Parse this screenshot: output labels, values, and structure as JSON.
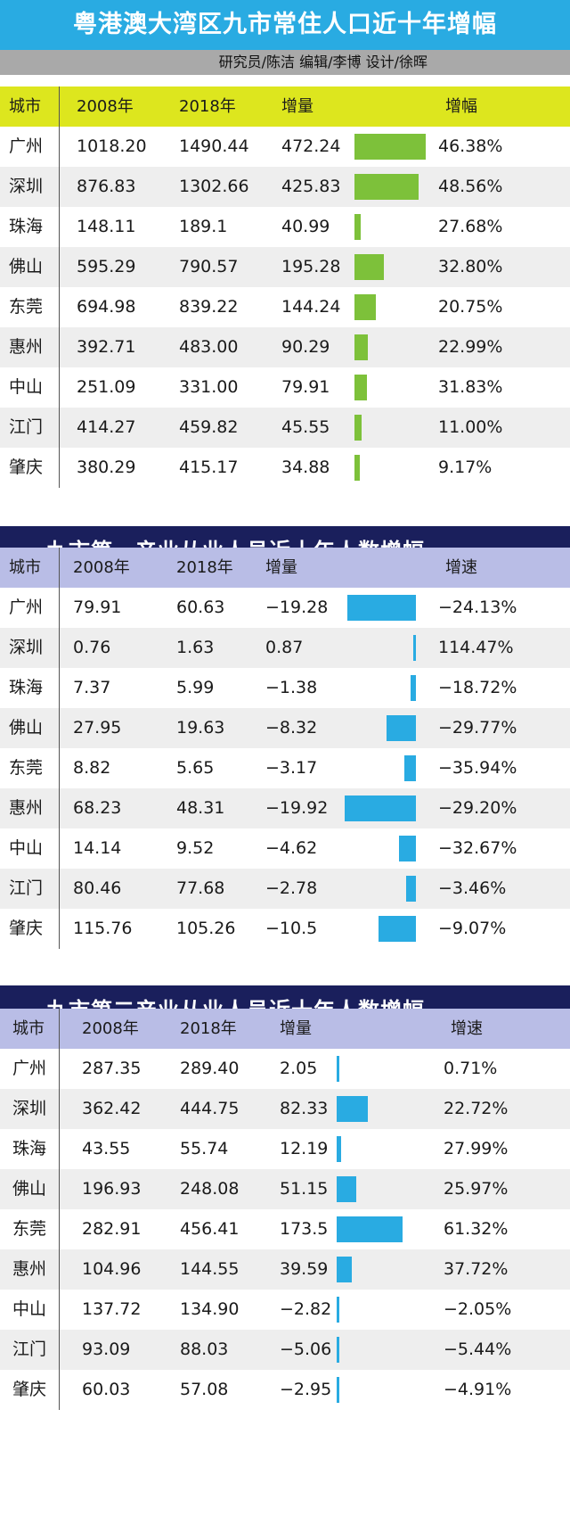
{
  "header": {
    "title": "粤港澳大湾区九市常住人口近十年增幅",
    "credits": "研究员/陈洁  编辑/李博  设计/徐晖"
  },
  "chart_data": [
    {
      "type": "table",
      "title": "",
      "columns": [
        "城市",
        "2008年",
        "2018年",
        "增量",
        "增幅"
      ],
      "rows": [
        [
          "广州",
          "1018.20",
          "1490.44",
          "472.24",
          "46.38%"
        ],
        [
          "深圳",
          "876.83",
          "1302.66",
          "425.83",
          "48.56%"
        ],
        [
          "珠海",
          "148.11",
          "189.1",
          "40.99",
          "27.68%"
        ],
        [
          "佛山",
          "595.29",
          "790.57",
          "195.28",
          "32.80%"
        ],
        [
          "东莞",
          "694.98",
          "839.22",
          "144.24",
          "20.75%"
        ],
        [
          "惠州",
          "392.71",
          "483.00",
          "90.29",
          "22.99%"
        ],
        [
          "中山",
          "251.09",
          "331.00",
          "79.91",
          "31.83%"
        ],
        [
          "江门",
          "414.27",
          "459.82",
          "45.55",
          "11.00%"
        ],
        [
          "肇庆",
          "380.29",
          "415.17",
          "34.88",
          "9.17%"
        ]
      ],
      "bar_values": [
        472.24,
        425.83,
        40.99,
        195.28,
        144.24,
        90.29,
        79.91,
        45.55,
        34.88
      ],
      "bar_color": "#7dc13a",
      "header_color": "#dde61e",
      "bar_direction": "right"
    },
    {
      "type": "table",
      "title": "九市第一产业从业人员近十年人数增幅",
      "columns": [
        "城市",
        "2008年",
        "2018年",
        "增量",
        "增速"
      ],
      "rows": [
        [
          "广州",
          "79.91",
          "60.63",
          "−19.28",
          "−24.13%"
        ],
        [
          "深圳",
          "0.76",
          "1.63",
          "0.87",
          "114.47%"
        ],
        [
          "珠海",
          "7.37",
          "5.99",
          "−1.38",
          "−18.72%"
        ],
        [
          "佛山",
          "27.95",
          "19.63",
          "−8.32",
          "−29.77%"
        ],
        [
          "东莞",
          "8.82",
          "5.65",
          "−3.17",
          "−35.94%"
        ],
        [
          "惠州",
          "68.23",
          "48.31",
          "−19.92",
          "−29.20%"
        ],
        [
          "中山",
          "14.14",
          "9.52",
          "−4.62",
          "−32.67%"
        ],
        [
          "江门",
          "80.46",
          "77.68",
          "−2.78",
          "−3.46%"
        ],
        [
          "肇庆",
          "115.76",
          "105.26",
          "−10.5",
          "−9.07%"
        ]
      ],
      "bar_values": [
        -19.28,
        0.87,
        -1.38,
        -8.32,
        -3.17,
        -19.92,
        -4.62,
        -2.78,
        -10.5
      ],
      "bar_color": "#29abe2",
      "header_color": "#b9bde6",
      "bar_direction": "left"
    },
    {
      "type": "table",
      "title": "九市第二产业从业人员近十年人数增幅",
      "columns": [
        "城市",
        "2008年",
        "2018年",
        "增量",
        "增速"
      ],
      "rows": [
        [
          "广州",
          "287.35",
          "289.40",
          "2.05",
          "0.71%"
        ],
        [
          "深圳",
          "362.42",
          "444.75",
          "82.33",
          "22.72%"
        ],
        [
          "珠海",
          "43.55",
          "55.74",
          "12.19",
          "27.99%"
        ],
        [
          "佛山",
          "196.93",
          "248.08",
          "51.15",
          "25.97%"
        ],
        [
          "东莞",
          "282.91",
          "456.41",
          "173.5",
          "61.32%"
        ],
        [
          "惠州",
          "104.96",
          "144.55",
          "39.59",
          "37.72%"
        ],
        [
          "中山",
          "137.72",
          "134.90",
          "−2.82",
          "−2.05%"
        ],
        [
          "江门",
          "93.09",
          "88.03",
          "−5.06",
          "−5.44%"
        ],
        [
          "肇庆",
          "60.03",
          "57.08",
          "−2.95",
          "−4.91%"
        ]
      ],
      "bar_values": [
        2.05,
        82.33,
        12.19,
        51.15,
        173.5,
        39.59,
        -2.82,
        -5.06,
        -2.95
      ],
      "bar_color": "#29abe2",
      "header_color": "#b9bde6",
      "bar_direction": "right"
    }
  ]
}
